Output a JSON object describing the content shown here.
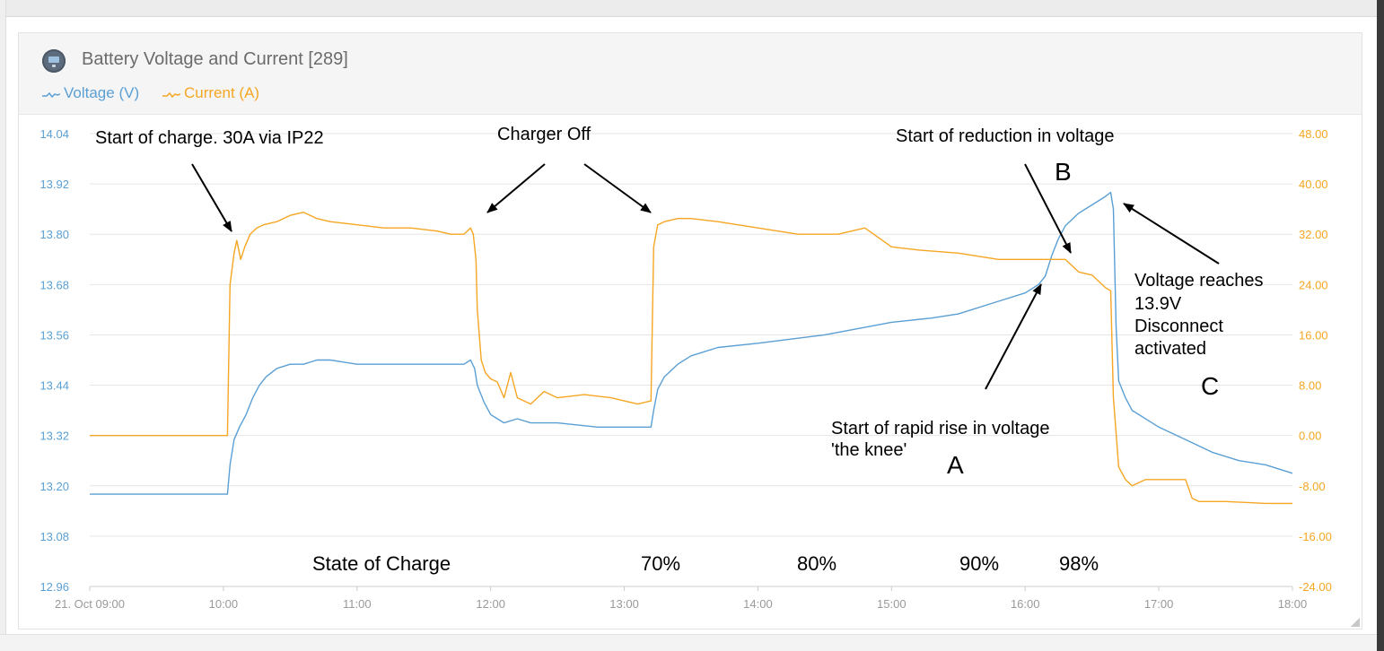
{
  "widget": {
    "title": "Battery Voltage and Current [289]",
    "icon": "battery-monitor-icon"
  },
  "legend": {
    "voltage_label": "Voltage (V)",
    "current_label": "Current (A)"
  },
  "colors": {
    "voltage": "#5a9fd4",
    "current": "#f5a623",
    "grid": "#e6e6e6"
  },
  "chart_data": {
    "type": "line",
    "title": "Battery Voltage and Current [289]",
    "x_unit": "hours",
    "x_ticks": [
      {
        "value": 9,
        "label": "21. Oct 09:00"
      },
      {
        "value": 10,
        "label": "10:00"
      },
      {
        "value": 11,
        "label": "11:00"
      },
      {
        "value": 12,
        "label": "12:00"
      },
      {
        "value": 13,
        "label": "13:00"
      },
      {
        "value": 14,
        "label": "14:00"
      },
      {
        "value": 15,
        "label": "15:00"
      },
      {
        "value": 16,
        "label": "16:00"
      },
      {
        "value": 17,
        "label": "17:00"
      },
      {
        "value": 18,
        "label": "18:00"
      }
    ],
    "xlim": [
      9,
      18
    ],
    "y_left": {
      "label": "Voltage (V)",
      "ylim": [
        12.96,
        14.04
      ],
      "ticks": [
        "14.04",
        "13.92",
        "13.80",
        "13.68",
        "13.56",
        "13.44",
        "13.32",
        "13.20",
        "13.08",
        "12.96"
      ]
    },
    "y_right": {
      "label": "Current (A)",
      "ylim": [
        -24,
        48
      ],
      "ticks": [
        "48.00",
        "40.00",
        "32.00",
        "24.00",
        "16.00",
        "8.00",
        "0.00",
        "-8.00",
        "-16.00",
        "-24.00"
      ]
    },
    "grid": true,
    "series": [
      {
        "name": "Voltage (V)",
        "axis": "left",
        "x": [
          9.0,
          10.03,
          10.05,
          10.08,
          10.12,
          10.17,
          10.22,
          10.27,
          10.32,
          10.4,
          10.5,
          10.6,
          10.7,
          10.8,
          11.0,
          11.4,
          11.7,
          11.8,
          11.85,
          11.88,
          11.9,
          11.95,
          12.0,
          12.05,
          12.1,
          12.2,
          12.3,
          12.5,
          12.8,
          13.2,
          13.22,
          13.25,
          13.3,
          13.4,
          13.5,
          13.7,
          14.0,
          14.5,
          15.0,
          15.3,
          15.5,
          15.8,
          16.0,
          16.1,
          16.15,
          16.2,
          16.25,
          16.3,
          16.4,
          16.5,
          16.6,
          16.64,
          16.66,
          16.68,
          16.7,
          16.75,
          16.8,
          17.0,
          17.2,
          17.4,
          17.6,
          17.8,
          18.0
        ],
        "y": [
          13.18,
          13.18,
          13.25,
          13.31,
          13.34,
          13.37,
          13.41,
          13.44,
          13.46,
          13.48,
          13.49,
          13.49,
          13.5,
          13.5,
          13.49,
          13.49,
          13.49,
          13.49,
          13.5,
          13.48,
          13.44,
          13.4,
          13.37,
          13.36,
          13.35,
          13.36,
          13.35,
          13.35,
          13.34,
          13.34,
          13.38,
          13.43,
          13.46,
          13.49,
          13.51,
          13.53,
          13.54,
          13.56,
          13.59,
          13.6,
          13.61,
          13.64,
          13.66,
          13.68,
          13.7,
          13.75,
          13.79,
          13.82,
          13.85,
          13.87,
          13.89,
          13.9,
          13.86,
          13.58,
          13.45,
          13.41,
          13.38,
          13.34,
          13.31,
          13.28,
          13.26,
          13.25,
          13.23
        ]
      },
      {
        "name": "Current (A)",
        "axis": "right",
        "x": [
          9.0,
          10.03,
          10.05,
          10.08,
          10.1,
          10.13,
          10.16,
          10.2,
          10.25,
          10.3,
          10.4,
          10.5,
          10.6,
          10.7,
          10.8,
          11.0,
          11.2,
          11.4,
          11.6,
          11.7,
          11.8,
          11.85,
          11.87,
          11.89,
          11.9,
          11.93,
          11.96,
          12.0,
          12.05,
          12.1,
          12.15,
          12.2,
          12.3,
          12.4,
          12.5,
          12.7,
          12.9,
          13.1,
          13.2,
          13.22,
          13.25,
          13.3,
          13.4,
          13.5,
          13.7,
          14.0,
          14.3,
          14.6,
          14.8,
          15.0,
          15.2,
          15.5,
          15.8,
          16.0,
          16.2,
          16.3,
          16.4,
          16.5,
          16.55,
          16.6,
          16.64,
          16.66,
          16.7,
          16.75,
          16.8,
          16.9,
          17.0,
          17.2,
          17.25,
          17.3,
          17.5,
          17.8,
          18.0
        ],
        "y": [
          0.0,
          0.0,
          24.0,
          29.0,
          31.0,
          28.0,
          30.0,
          32.0,
          33.0,
          33.5,
          34.0,
          35.0,
          35.5,
          34.5,
          34.0,
          33.5,
          33.0,
          33.0,
          32.5,
          32.0,
          32.0,
          33.0,
          32.0,
          28.0,
          20.0,
          12.0,
          10.0,
          9.0,
          8.5,
          6.0,
          10.0,
          6.0,
          5.0,
          7.0,
          6.0,
          6.5,
          6.0,
          5.0,
          5.5,
          30.0,
          33.5,
          34.0,
          34.5,
          34.5,
          34.0,
          33.0,
          32.0,
          32.0,
          33.0,
          30.0,
          29.5,
          29.0,
          28.0,
          28.0,
          28.0,
          28.0,
          26.0,
          25.5,
          24.5,
          23.5,
          23.0,
          6.0,
          -5.0,
          -7.0,
          -8.0,
          -7.0,
          -7.0,
          -7.0,
          -10.0,
          -10.5,
          -10.5,
          -10.8,
          -10.8
        ]
      }
    ],
    "annotations": [
      {
        "text": "Start of charge. 30A via IP22"
      },
      {
        "text": "Charger Off"
      },
      {
        "text": "Start of reduction in voltage"
      },
      {
        "text": "B"
      },
      {
        "text": "Voltage reaches"
      },
      {
        "text": "13.9V"
      },
      {
        "text": "Disconnect"
      },
      {
        "text": "activated"
      },
      {
        "text": "C"
      },
      {
        "text": "Start of rapid rise in voltage"
      },
      {
        "text": "'the knee'"
      },
      {
        "text": "A"
      },
      {
        "text": "State of Charge"
      },
      {
        "text": "70%"
      },
      {
        "text": "80%"
      },
      {
        "text": "90%"
      },
      {
        "text": "98%"
      }
    ]
  }
}
